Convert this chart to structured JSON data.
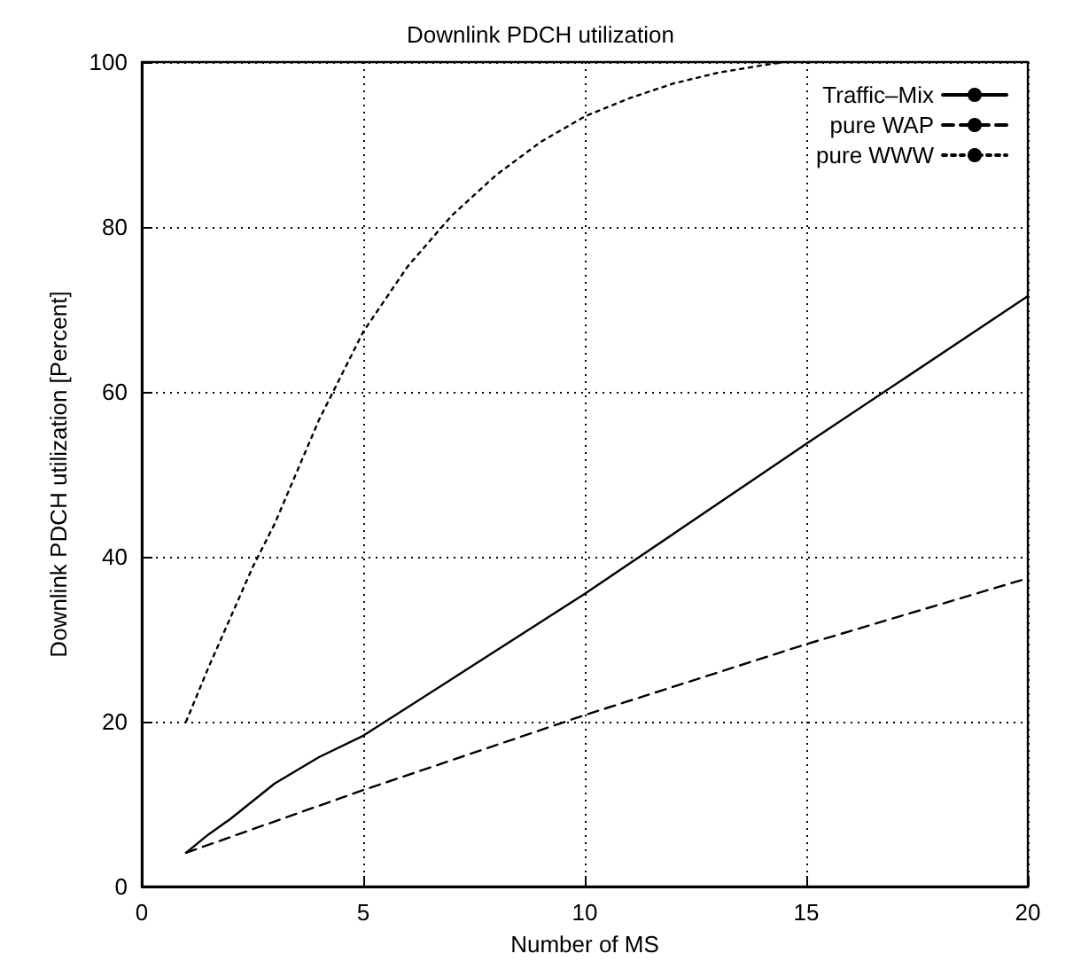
{
  "chart_data": {
    "type": "line",
    "title": "Downlink PDCH utilization",
    "xlabel": "Number of MS",
    "ylabel": "Downlink PDCH utilization [Percent]",
    "xlim": [
      0,
      20
    ],
    "xticks": [
      0,
      5,
      10,
      15,
      20
    ],
    "ylim": [
      0,
      100
    ],
    "yticks": [
      0,
      20,
      40,
      60,
      80,
      100
    ],
    "grid": true,
    "legend": "top right",
    "marker": "none",
    "series": [
      {
        "name": "Traffic–Mix",
        "color": "#000000",
        "line_style": "solid",
        "x": [
          1,
          1.5,
          2,
          3,
          4,
          5,
          10,
          15,
          20
        ],
        "values": [
          4.1,
          6.3,
          8.2,
          12.5,
          15.7,
          18.3,
          35.5,
          53.7,
          71.6
        ]
      },
      {
        "name": "pure WAP",
        "color": "#000000",
        "line_style": "dashed",
        "x": [
          1,
          5,
          10,
          15,
          20
        ],
        "values": [
          4.1,
          11.7,
          20.8,
          29.4,
          37.4
        ]
      },
      {
        "name": "pure WWW",
        "color": "#000000",
        "line_style": "dotted",
        "x": [
          1,
          1.5,
          2,
          2.5,
          3,
          4,
          5,
          6,
          7,
          8,
          9,
          10,
          11,
          12,
          13,
          14,
          14.5
        ],
        "values": [
          20,
          26.5,
          32.6,
          38.7,
          44,
          56.6,
          67.3,
          75.2,
          81.4,
          86.3,
          90.3,
          93.4,
          95.6,
          97.4,
          98.7,
          99.6,
          100
        ]
      }
    ]
  }
}
